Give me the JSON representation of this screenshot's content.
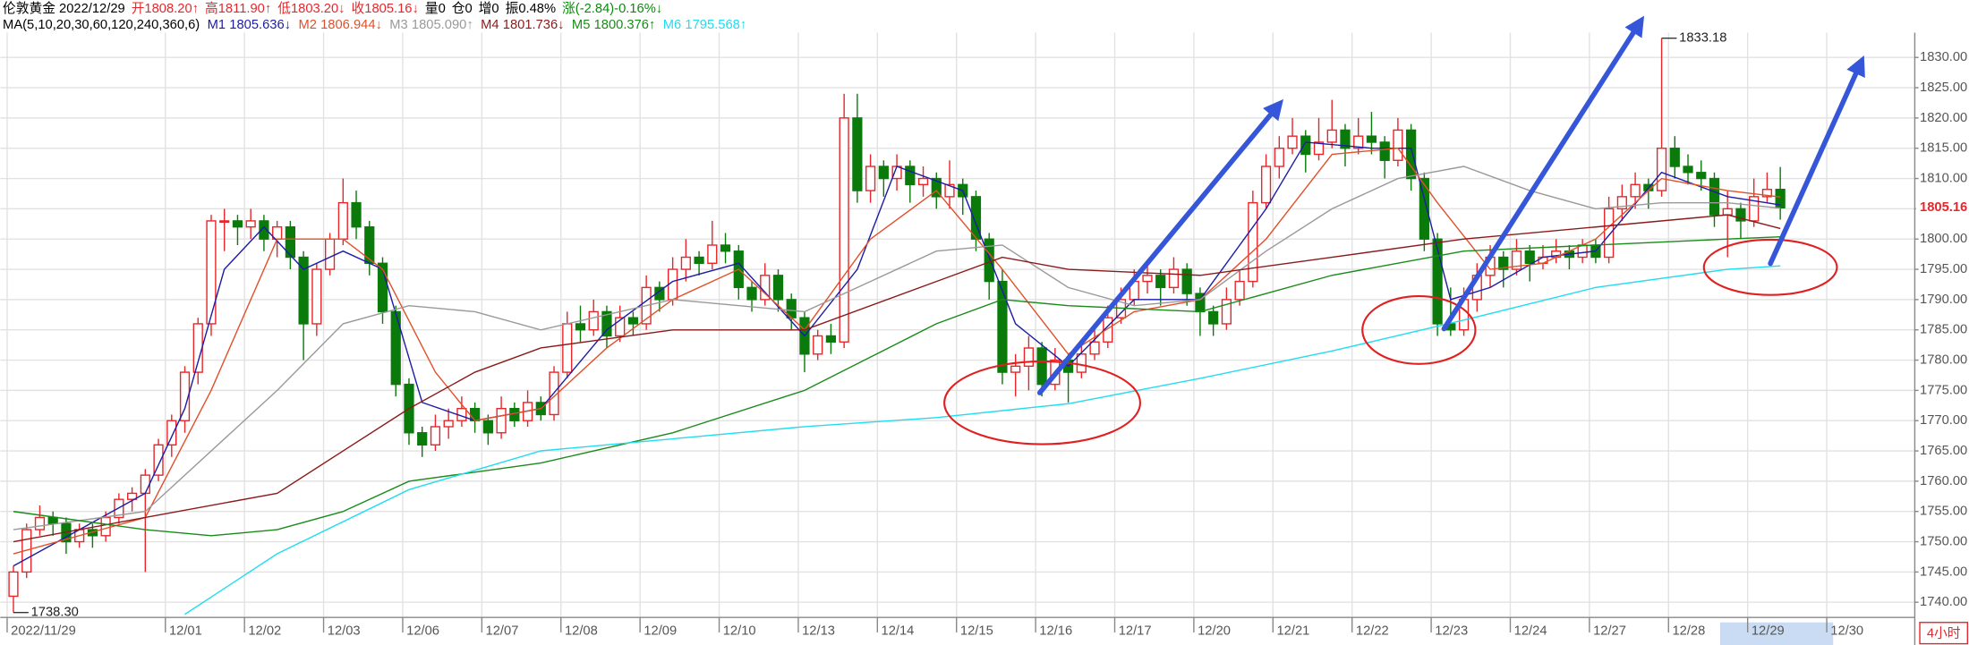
{
  "chart_data": {
    "type": "candlestick",
    "header": [
      {
        "text": "伦敦黄金 2022/12/29",
        "color": "#000000"
      },
      {
        "text": "开1808.20↑",
        "color": "#e8262a"
      },
      {
        "text": "高1811.90↑",
        "color": "#e8262a"
      },
      {
        "text": "低1803.20↓",
        "color": "#e8262a"
      },
      {
        "text": "收1805.16↓",
        "color": "#e8262a"
      },
      {
        "text": "量0",
        "color": "#000000"
      },
      {
        "text": "仓0",
        "color": "#000000"
      },
      {
        "text": "增0",
        "color": "#000000"
      },
      {
        "text": "振0.48%",
        "color": "#000000"
      },
      {
        "text": "涨(-2.84)-0.16%↓",
        "color": "#0a8a0a"
      }
    ],
    "ma_title": "MA(5,10,20,30,60,120,240,360,6)",
    "series": [
      {
        "name": "M1",
        "current": "1805.636↓",
        "color": "#1c1ca8",
        "x": [
          0,
          5,
          10,
          13,
          16,
          19,
          22,
          25,
          28,
          31,
          35,
          40,
          45,
          50,
          55,
          60,
          64,
          67,
          72,
          76,
          80,
          85,
          90,
          95,
          98,
          103,
          106,
          109,
          112,
          116,
          120,
          125,
          130,
          134
        ],
        "values": [
          1746,
          1752,
          1758,
          1772,
          1795,
          1802,
          1795,
          1798,
          1795,
          1773,
          1770,
          1772,
          1785,
          1793,
          1796,
          1784,
          1795,
          1812,
          1808,
          1786,
          1779,
          1790,
          1790,
          1805,
          1816,
          1815,
          1815,
          1790,
          1792,
          1797,
          1798,
          1811,
          1807,
          1805.636
        ]
      },
      {
        "name": "M2",
        "current": "1806.944↓",
        "color": "#e0502a",
        "x": [
          0,
          10,
          15,
          20,
          25,
          28,
          32,
          35,
          40,
          45,
          50,
          55,
          60,
          65,
          70,
          75,
          80,
          85,
          90,
          95,
          100,
          105,
          108,
          112,
          116,
          120,
          125,
          130,
          134
        ],
        "values": [
          1748,
          1754,
          1775,
          1800,
          1800,
          1795,
          1778,
          1770,
          1772,
          1782,
          1790,
          1795,
          1785,
          1800,
          1808,
          1795,
          1781,
          1788,
          1790,
          1800,
          1814,
          1815,
          1806,
          1795,
          1796,
          1800,
          1810,
          1808,
          1806.944
        ]
      },
      {
        "name": "M3",
        "current": "1805.090↑",
        "color": "#999999",
        "x": [
          0,
          10,
          20,
          25,
          30,
          35,
          40,
          50,
          60,
          65,
          70,
          75,
          80,
          85,
          90,
          95,
          100,
          105,
          110,
          115,
          120,
          125,
          130,
          134
        ],
        "values": [
          1752,
          1755,
          1775,
          1786,
          1789,
          1788,
          1785,
          1790,
          1788,
          1793,
          1798,
          1799,
          1792,
          1789,
          1790,
          1798,
          1805,
          1810,
          1812,
          1808,
          1805,
          1806,
          1806,
          1805.09
        ]
      },
      {
        "name": "M4",
        "current": "1801.736↓",
        "color": "#8b1a1a",
        "x": [
          0,
          10,
          20,
          30,
          35,
          40,
          50,
          60,
          70,
          75,
          80,
          90,
          100,
          110,
          120,
          130,
          134
        ],
        "values": [
          1750,
          1754,
          1758,
          1772,
          1778,
          1782,
          1785,
          1785,
          1793,
          1797,
          1795,
          1794,
          1797,
          1800,
          1802,
          1804,
          1801.736
        ]
      },
      {
        "name": "M5",
        "current": "1800.376↑",
        "color": "#1a8a1a",
        "x": [
          0,
          10,
          15,
          20,
          25,
          30,
          40,
          50,
          60,
          70,
          75,
          80,
          90,
          100,
          110,
          120,
          130,
          134
        ],
        "values": [
          1755,
          1752,
          1751,
          1752,
          1755,
          1760,
          1763,
          1768,
          1775,
          1786,
          1790,
          1789,
          1788,
          1794,
          1798,
          1799,
          1800,
          1800.376
        ]
      },
      {
        "name": "M6",
        "current": "1795.568↑",
        "color": "#22dcef",
        "x": [
          13,
          20,
          30,
          40,
          50,
          60,
          70,
          80,
          90,
          100,
          110,
          120,
          130,
          134
        ],
        "values": [
          1738,
          1748,
          1758.6,
          1765,
          1767,
          1769,
          1770.5,
          1772.8,
          1777,
          1781.5,
          1786.6,
          1792,
          1795,
          1795.568
        ]
      }
    ],
    "ohlc": [
      [
        1741,
        1746,
        1738.3,
        1745
      ],
      [
        1745,
        1753,
        1744,
        1752
      ],
      [
        1752,
        1756,
        1751,
        1754
      ],
      [
        1754,
        1755,
        1751,
        1753
      ],
      [
        1753,
        1754,
        1748,
        1750
      ],
      [
        1750,
        1753,
        1749,
        1752
      ],
      [
        1752,
        1753,
        1749,
        1751
      ],
      [
        1751,
        1755,
        1750,
        1754
      ],
      [
        1754,
        1758,
        1753,
        1757
      ],
      [
        1757,
        1759,
        1755,
        1758
      ],
      [
        1758,
        1762,
        1745,
        1761
      ],
      [
        1761,
        1767,
        1760,
        1766
      ],
      [
        1766,
        1771,
        1764,
        1770
      ],
      [
        1770,
        1779,
        1768,
        1778
      ],
      [
        1778,
        1787,
        1776,
        1786
      ],
      [
        1786,
        1804,
        1784,
        1803
      ],
      [
        1803,
        1805,
        1798,
        1803
      ],
      [
        1803,
        1804,
        1799,
        1802
      ],
      [
        1802,
        1805,
        1800,
        1803
      ],
      [
        1803,
        1804,
        1798,
        1800
      ],
      [
        1800,
        1803,
        1797,
        1802
      ],
      [
        1802,
        1803,
        1795,
        1797
      ],
      [
        1797,
        1798,
        1780,
        1786
      ],
      [
        1786,
        1796,
        1784,
        1795
      ],
      [
        1795,
        1801,
        1794,
        1800
      ],
      [
        1800,
        1810,
        1799,
        1806
      ],
      [
        1806,
        1808,
        1800,
        1802
      ],
      [
        1802,
        1803,
        1794,
        1796
      ],
      [
        1796,
        1797,
        1786,
        1788
      ],
      [
        1788,
        1789,
        1774,
        1776
      ],
      [
        1776,
        1777,
        1766,
        1768
      ],
      [
        1768,
        1769,
        1764,
        1766
      ],
      [
        1766,
        1771,
        1765,
        1769
      ],
      [
        1769,
        1772,
        1767,
        1770
      ],
      [
        1770,
        1774,
        1769,
        1772
      ],
      [
        1772,
        1773,
        1768,
        1770
      ],
      [
        1770,
        1771,
        1766,
        1768
      ],
      [
        1768,
        1774,
        1767,
        1772
      ],
      [
        1772,
        1773,
        1769,
        1770
      ],
      [
        1770,
        1775,
        1769,
        1773
      ],
      [
        1773,
        1774,
        1770,
        1771
      ],
      [
        1771,
        1779,
        1770,
        1778
      ],
      [
        1778,
        1788,
        1777,
        1786
      ],
      [
        1786,
        1789,
        1783,
        1785
      ],
      [
        1785,
        1790,
        1784,
        1788
      ],
      [
        1788,
        1789,
        1782,
        1784
      ],
      [
        1784,
        1789,
        1783,
        1787
      ],
      [
        1787,
        1788,
        1784,
        1786
      ],
      [
        1786,
        1794,
        1785,
        1792
      ],
      [
        1792,
        1793,
        1788,
        1790
      ],
      [
        1790,
        1797,
        1789,
        1795
      ],
      [
        1795,
        1800,
        1793,
        1797
      ],
      [
        1797,
        1798,
        1794,
        1796
      ],
      [
        1796,
        1803,
        1795,
        1799
      ],
      [
        1799,
        1801,
        1796,
        1798
      ],
      [
        1798,
        1799,
        1790,
        1792
      ],
      [
        1792,
        1793,
        1788,
        1790
      ],
      [
        1790,
        1796,
        1789,
        1794
      ],
      [
        1794,
        1795,
        1788,
        1790
      ],
      [
        1790,
        1791,
        1785,
        1787
      ],
      [
        1787,
        1788,
        1778,
        1781
      ],
      [
        1781,
        1785,
        1780,
        1784
      ],
      [
        1784,
        1786,
        1781,
        1783
      ],
      [
        1783,
        1824,
        1782,
        1820
      ],
      [
        1820,
        1824,
        1806,
        1808
      ],
      [
        1808,
        1814,
        1806,
        1812
      ],
      [
        1812,
        1813,
        1807,
        1810
      ],
      [
        1810,
        1814,
        1808,
        1812
      ],
      [
        1812,
        1813,
        1806,
        1809
      ],
      [
        1809,
        1812,
        1807,
        1810
      ],
      [
        1810,
        1811,
        1805,
        1807
      ],
      [
        1807,
        1813,
        1805,
        1809
      ],
      [
        1809,
        1810,
        1804,
        1807
      ],
      [
        1807,
        1808,
        1798,
        1800
      ],
      [
        1800,
        1801,
        1790,
        1793
      ],
      [
        1793,
        1795,
        1776,
        1778
      ],
      [
        1778,
        1781,
        1774,
        1779
      ],
      [
        1779,
        1784,
        1775,
        1782
      ],
      [
        1782,
        1783,
        1774,
        1776
      ],
      [
        1776,
        1782,
        1775,
        1780
      ],
      [
        1780,
        1781,
        1773,
        1778
      ],
      [
        1778,
        1783,
        1777,
        1781
      ],
      [
        1781,
        1785,
        1780,
        1783
      ],
      [
        1783,
        1789,
        1782,
        1787
      ],
      [
        1787,
        1792,
        1786,
        1790
      ],
      [
        1790,
        1795,
        1789,
        1793
      ],
      [
        1793,
        1796,
        1791,
        1794
      ],
      [
        1794,
        1795,
        1789,
        1792
      ],
      [
        1792,
        1797,
        1791,
        1795
      ],
      [
        1795,
        1796,
        1789,
        1791
      ],
      [
        1791,
        1792,
        1784,
        1788
      ],
      [
        1788,
        1789,
        1784,
        1786
      ],
      [
        1786,
        1792,
        1785,
        1790
      ],
      [
        1790,
        1795,
        1789,
        1793
      ],
      [
        1793,
        1808,
        1792,
        1806
      ],
      [
        1806,
        1814,
        1805,
        1812
      ],
      [
        1812,
        1817,
        1810,
        1815
      ],
      [
        1815,
        1820,
        1814,
        1817
      ],
      [
        1817,
        1818,
        1811,
        1814
      ],
      [
        1814,
        1820,
        1813,
        1816
      ],
      [
        1816,
        1823,
        1815,
        1818
      ],
      [
        1818,
        1819,
        1812,
        1815
      ],
      [
        1815,
        1820,
        1814,
        1817
      ],
      [
        1817,
        1821,
        1814,
        1816
      ],
      [
        1816,
        1817,
        1810,
        1813
      ],
      [
        1813,
        1820,
        1812,
        1818
      ],
      [
        1818,
        1819,
        1808,
        1810
      ],
      [
        1810,
        1811,
        1798,
        1800
      ],
      [
        1800,
        1801,
        1784,
        1786
      ],
      [
        1786,
        1792,
        1784,
        1785
      ],
      [
        1785,
        1792,
        1784,
        1790
      ],
      [
        1790,
        1796,
        1788,
        1794
      ],
      [
        1794,
        1799,
        1792,
        1797
      ],
      [
        1797,
        1798,
        1792,
        1795
      ],
      [
        1795,
        1800,
        1794,
        1798
      ],
      [
        1798,
        1799,
        1793,
        1796
      ],
      [
        1796,
        1799,
        1795,
        1797
      ],
      [
        1797,
        1800,
        1796,
        1798
      ],
      [
        1798,
        1799,
        1795,
        1797
      ],
      [
        1797,
        1800,
        1796,
        1799
      ],
      [
        1799,
        1800,
        1796,
        1797
      ],
      [
        1797,
        1807,
        1796,
        1805
      ],
      [
        1805,
        1809,
        1803,
        1807
      ],
      [
        1807,
        1811,
        1805,
        1809
      ],
      [
        1809,
        1810,
        1805,
        1808
      ],
      [
        1808,
        1833.18,
        1807,
        1815
      ],
      [
        1815,
        1817,
        1810,
        1812
      ],
      [
        1812,
        1814,
        1809,
        1811
      ],
      [
        1811,
        1813,
        1808,
        1810
      ],
      [
        1810,
        1811,
        1802,
        1804
      ],
      [
        1804,
        1808,
        1797,
        1805
      ],
      [
        1805,
        1806,
        1800,
        1803
      ],
      [
        1803,
        1810,
        1802,
        1807
      ],
      [
        1807,
        1811,
        1806,
        1808.2
      ],
      [
        1808.2,
        1811.9,
        1803.2,
        1805.16
      ]
    ],
    "up_color": "#e8262a",
    "down_color": "#0a7a0a",
    "xlim": [
      -1,
      144.2
    ],
    "xticks": [
      {
        "value": 0,
        "label": "2022/11/29"
      },
      {
        "value": 12,
        "label": "12/01"
      },
      {
        "value": 18,
        "label": "12/02"
      },
      {
        "value": 24,
        "label": "12/03"
      },
      {
        "value": 30,
        "label": "12/06"
      },
      {
        "value": 36,
        "label": "12/07"
      },
      {
        "value": 42,
        "label": "12/08"
      },
      {
        "value": 48,
        "label": "12/09"
      },
      {
        "value": 54,
        "label": "12/10"
      },
      {
        "value": 60,
        "label": "12/13"
      },
      {
        "value": 66,
        "label": "12/14"
      },
      {
        "value": 72,
        "label": "12/15"
      },
      {
        "value": 78,
        "label": "12/16"
      },
      {
        "value": 84,
        "label": "12/17"
      },
      {
        "value": 90,
        "label": "12/20"
      },
      {
        "value": 96,
        "label": "12/21"
      },
      {
        "value": 102,
        "label": "12/22"
      },
      {
        "value": 108,
        "label": "12/23"
      },
      {
        "value": 114,
        "label": "12/24"
      },
      {
        "value": 120,
        "label": "12/27"
      },
      {
        "value": 126,
        "label": "12/28"
      },
      {
        "value": 132,
        "label": "12/29"
      },
      {
        "value": 138,
        "label": "12/30"
      }
    ],
    "ylim": [
      1737.5,
      1834.1
    ],
    "yticks": [
      {
        "value": 1740,
        "label": "1740.00"
      },
      {
        "value": 1745,
        "label": "1745.00"
      },
      {
        "value": 1750,
        "label": "1750.00"
      },
      {
        "value": 1755,
        "label": "1755.00"
      },
      {
        "value": 1760,
        "label": "1760.00"
      },
      {
        "value": 1765,
        "label": "1765.00"
      },
      {
        "value": 1770,
        "label": "1770.00"
      },
      {
        "value": 1775,
        "label": "1775.00"
      },
      {
        "value": 1780,
        "label": "1780.00"
      },
      {
        "value": 1785,
        "label": "1785.00"
      },
      {
        "value": 1790,
        "label": "1790.00"
      },
      {
        "value": 1795,
        "label": "1795.00"
      },
      {
        "value": 1800,
        "label": "1800.00"
      },
      {
        "value": 1805,
        "label": "1805.00"
      },
      {
        "value": 1810,
        "label": "1810.00"
      },
      {
        "value": 1815,
        "label": "1815.00"
      },
      {
        "value": 1820,
        "label": "1820.00"
      },
      {
        "value": 1825,
        "label": "1825.00"
      },
      {
        "value": 1830,
        "label": "1830.00"
      }
    ],
    "grid": true,
    "last_price_label": "1805.16",
    "max_label": "1833.18",
    "min_label": "1738.30",
    "period": "4小时"
  }
}
